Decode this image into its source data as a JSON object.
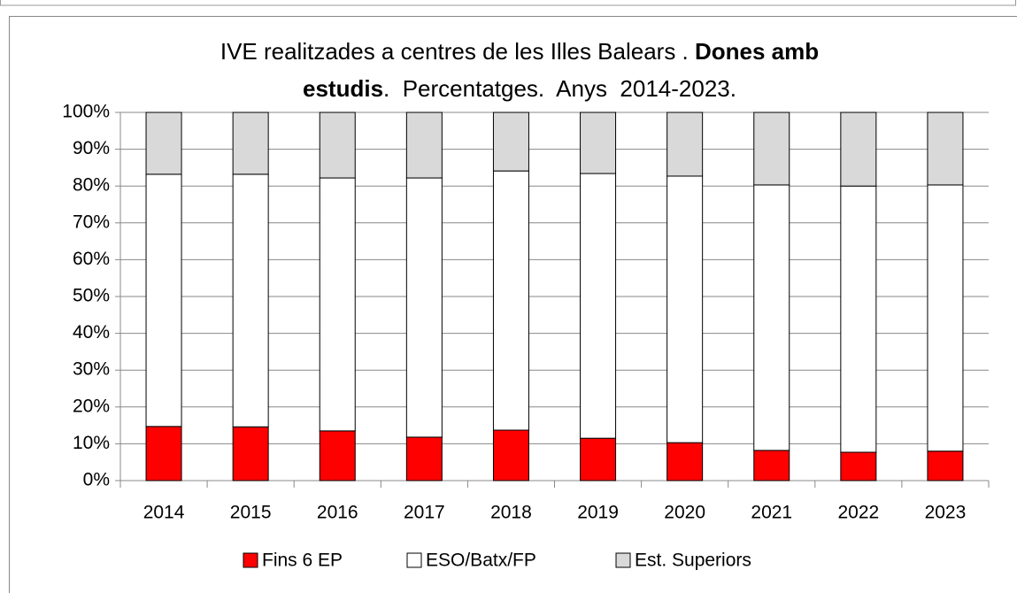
{
  "chart_data": {
    "type": "stacked_bar",
    "title_lines": [
      [
        {
          "text": "IVE realitzades a centres de les Illes Balears . "
        },
        {
          "text": "Dones amb",
          "bold": true
        }
      ],
      [
        {
          "text": "estudis",
          "bold": true
        },
        {
          "text": ".  Percentatges.  Anys  2014-2023."
        }
      ]
    ],
    "categories": [
      "2014",
      "2015",
      "2016",
      "2017",
      "2018",
      "2019",
      "2020",
      "2021",
      "2022",
      "2023"
    ],
    "series": [
      {
        "name": "Fins 6 EP",
        "color": "#ff0000",
        "values": [
          14.7,
          14.6,
          13.5,
          11.8,
          13.7,
          11.5,
          10.3,
          8.2,
          7.7,
          8.0
        ]
      },
      {
        "name": "ESO/Batx/FP",
        "color": "#ffffff",
        "values": [
          68.5,
          68.6,
          68.7,
          70.4,
          70.4,
          71.9,
          72.4,
          72.1,
          72.3,
          72.3
        ]
      },
      {
        "name": "Est. Superiors",
        "color": "#d9d9d9",
        "values": [
          16.8,
          16.8,
          17.8,
          17.8,
          15.9,
          16.6,
          17.3,
          19.7,
          20.0,
          19.7
        ]
      }
    ],
    "ylim": [
      0,
      100
    ],
    "yticks": [
      {
        "value": 0,
        "label": "0%"
      },
      {
        "value": 10,
        "label": "10%"
      },
      {
        "value": 20,
        "label": "20%"
      },
      {
        "value": 30,
        "label": "30%"
      },
      {
        "value": 40,
        "label": "40%"
      },
      {
        "value": 50,
        "label": "50%"
      },
      {
        "value": 60,
        "label": "60%"
      },
      {
        "value": 70,
        "label": "70%"
      },
      {
        "value": 80,
        "label": "80%"
      },
      {
        "value": 90,
        "label": "90%"
      },
      {
        "value": 100,
        "label": "100%"
      }
    ],
    "grid": true,
    "legend": "bottom"
  }
}
